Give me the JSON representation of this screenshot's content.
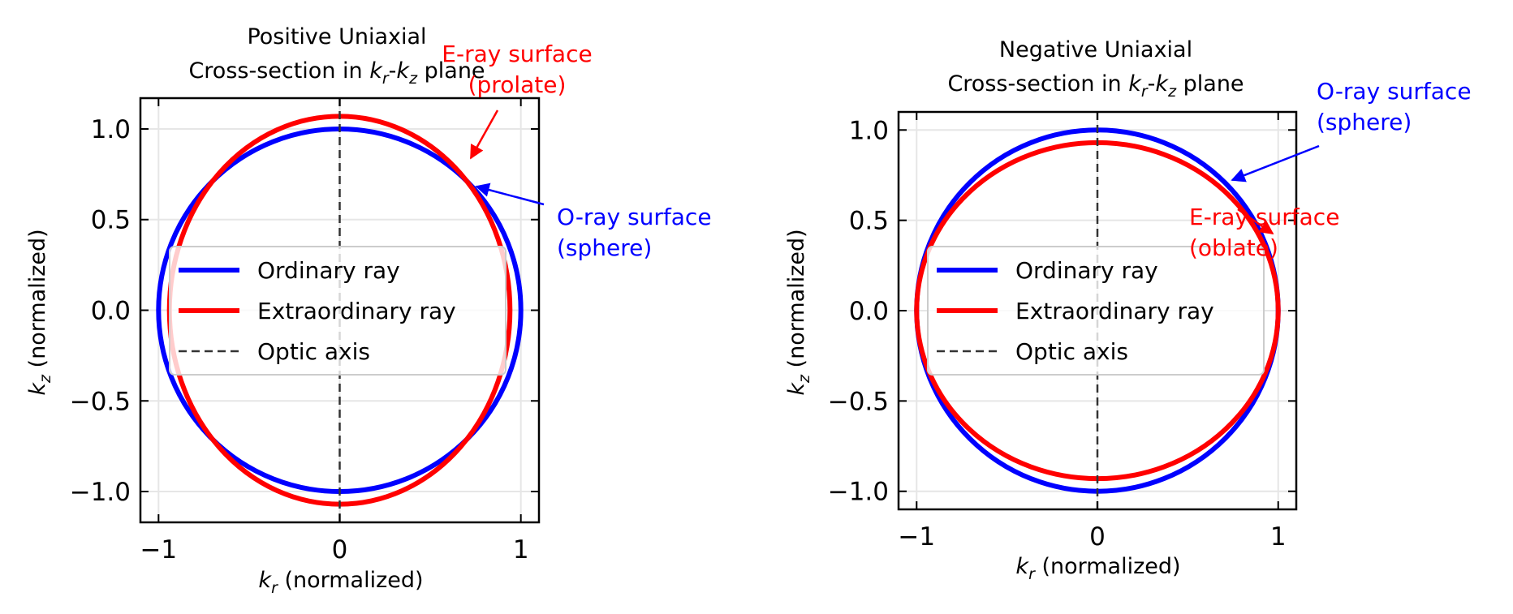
{
  "colors": {
    "ordinary": "#0000ff",
    "extraordinary": "#ff0000",
    "optic_axis": "#333333",
    "grid": "#e6e6e6",
    "legend_border": "#cccccc"
  },
  "chart_data": [
    {
      "type": "line",
      "title_line1": "Positive Uniaxial",
      "title_line2": "Cross-section in k_r-k_z plane",
      "title_parts": {
        "pre": "Cross-section in ",
        "k1": "k",
        "s1": "r",
        "dash": "-",
        "k2": "k",
        "s2": "z",
        "post": " plane"
      },
      "xlabel_parts": {
        "k": "k",
        "sub": "r",
        "rest": " (normalized)"
      },
      "ylabel_parts": {
        "k": "k",
        "sub": "z",
        "rest": " (normalized)"
      },
      "xlim": [
        -1.1,
        1.1
      ],
      "ylim": [
        -1.17,
        1.17
      ],
      "xticks": [
        -1,
        0,
        1
      ],
      "xtick_labels": [
        "−1",
        "0",
        "1"
      ],
      "yticks": [
        -1.0,
        -0.5,
        0.0,
        0.5,
        1.0
      ],
      "ytick_labels": [
        "−1.0",
        "−0.5",
        "0.0",
        "0.5",
        "1.0"
      ],
      "grid": true,
      "legend_placement": "center",
      "series": [
        {
          "name": "Ordinary ray",
          "shape": "ellipse",
          "semi_axis_r": 1.0,
          "semi_axis_z": 1.0,
          "style": "solid"
        },
        {
          "name": "Extraordinary ray",
          "shape": "ellipse",
          "semi_axis_r": 0.94,
          "semi_axis_z": 1.07,
          "style": "solid"
        },
        {
          "name": "Optic axis",
          "shape": "vline",
          "x": 0,
          "style": "dashed"
        }
      ],
      "annotations": [
        {
          "line1": "E-ray surface",
          "line2": "(prolate)",
          "color": "extraordinary",
          "point": [
            0.7,
            0.84
          ],
          "text_anchor": [
            0.88,
            1.25
          ]
        },
        {
          "line1": "O-ray surface",
          "line2": "(sphere)",
          "color": "ordinary",
          "point": [
            0.76,
            0.69
          ],
          "text_anchor": [
            1.15,
            0.5
          ]
        }
      ]
    },
    {
      "type": "line",
      "title_line1": "Negative Uniaxial",
      "title_line2": "Cross-section in k_r-k_z plane",
      "title_parts": {
        "pre": "Cross-section in ",
        "k1": "k",
        "s1": "r",
        "dash": "-",
        "k2": "k",
        "s2": "z",
        "post": " plane"
      },
      "xlabel_parts": {
        "k": "k",
        "sub": "r",
        "rest": " (normalized)"
      },
      "ylabel_parts": {
        "k": "k",
        "sub": "z",
        "rest": " (normalized)"
      },
      "xlim": [
        -1.1,
        1.1
      ],
      "ylim": [
        -1.1,
        1.1
      ],
      "xticks": [
        -1,
        0,
        1
      ],
      "xtick_labels": [
        "−1",
        "0",
        "1"
      ],
      "yticks": [
        -1.0,
        -0.5,
        0.0,
        0.5,
        1.0
      ],
      "ytick_labels": [
        "−1.0",
        "−0.5",
        "0.0",
        "0.5",
        "1.0"
      ],
      "grid": true,
      "legend_placement": "center",
      "series": [
        {
          "name": "Ordinary ray",
          "shape": "ellipse",
          "semi_axis_r": 1.0,
          "semi_axis_z": 1.0,
          "style": "solid"
        },
        {
          "name": "Extraordinary ray",
          "shape": "ellipse",
          "semi_axis_r": 1.0,
          "semi_axis_z": 0.93,
          "style": "solid"
        },
        {
          "name": "Optic axis",
          "shape": "vline",
          "x": 0,
          "style": "dashed"
        }
      ],
      "annotations": [
        {
          "line1": "O-ray surface",
          "line2": "(sphere)",
          "color": "ordinary",
          "point": [
            0.74,
            0.72
          ],
          "text_anchor": [
            1.22,
            0.97
          ]
        },
        {
          "line1": "E-ray surface",
          "line2": "(oblate)",
          "color": "extraordinary",
          "point": [
            0.76,
            0.57
          ],
          "text_anchor": [
            0.5,
            0.45
          ]
        }
      ]
    }
  ]
}
